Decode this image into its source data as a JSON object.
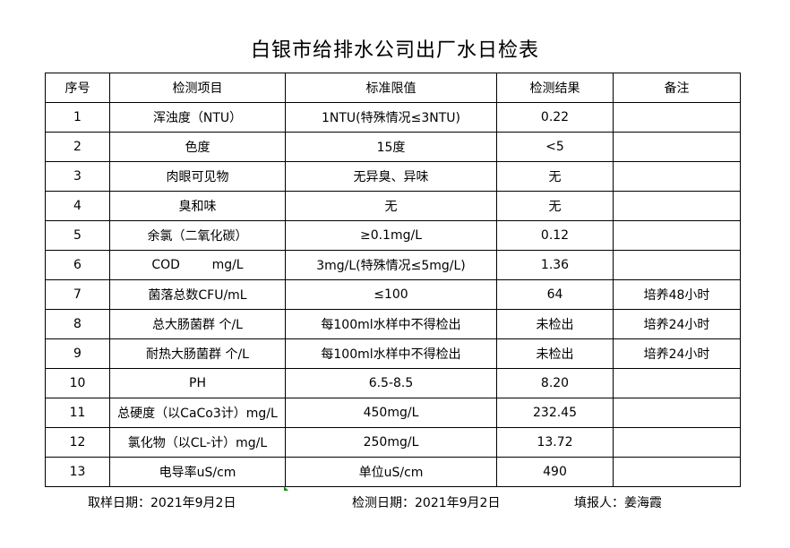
{
  "title": "白银市给排水公司出厂水日检表",
  "headers": [
    "序号",
    "检测项目",
    "标准限值",
    "检测结果",
    "备注"
  ],
  "rows": [
    [
      "1",
      "浑浊度（NTU）",
      "1NTU(特殊情况≤3NTU)",
      "0.22",
      ""
    ],
    [
      "2",
      "色度",
      "15度",
      "<5",
      ""
    ],
    [
      "3",
      "肉眼可见物",
      "无异臭、异味",
      "无",
      ""
    ],
    [
      "4",
      "臭和味",
      "无",
      "无",
      ""
    ],
    [
      "5",
      "余氯（二氧化碳）",
      "≥0.1mg/L",
      "0.12",
      ""
    ],
    [
      "6",
      "COD        mg/L",
      "3mg/L(特殊情况≤5mg/L)",
      "1.36",
      ""
    ],
    [
      "7",
      "菌落总数CFU/mL",
      "≤100",
      "64",
      "培养48小时"
    ],
    [
      "8",
      "总大肠菌群 个/L",
      "每100ml水样中不得检出",
      "未检出",
      "培养24小时"
    ],
    [
      "9",
      "耐热大肠菌群 个/L",
      "每100ml水样中不得检出",
      "未检出",
      "培养24小时"
    ],
    [
      "10",
      "PH",
      "6.5-8.5",
      "8.20",
      ""
    ],
    [
      "11",
      "总硬度（以CaCo3计）mg/L",
      "450mg/L",
      "232.45",
      ""
    ],
    [
      "12",
      "氯化物（以CL-计）mg/L",
      "250mg/L",
      "13.72",
      ""
    ],
    [
      "13",
      "电导率uS/cm",
      "单位uS/cm",
      "490",
      ""
    ]
  ],
  "footer": {
    "sample_date": "取样日期：2021年9月2日",
    "test_date": "检测日期：2021年9月2日",
    "reporter": "填报人：姜海霞"
  }
}
